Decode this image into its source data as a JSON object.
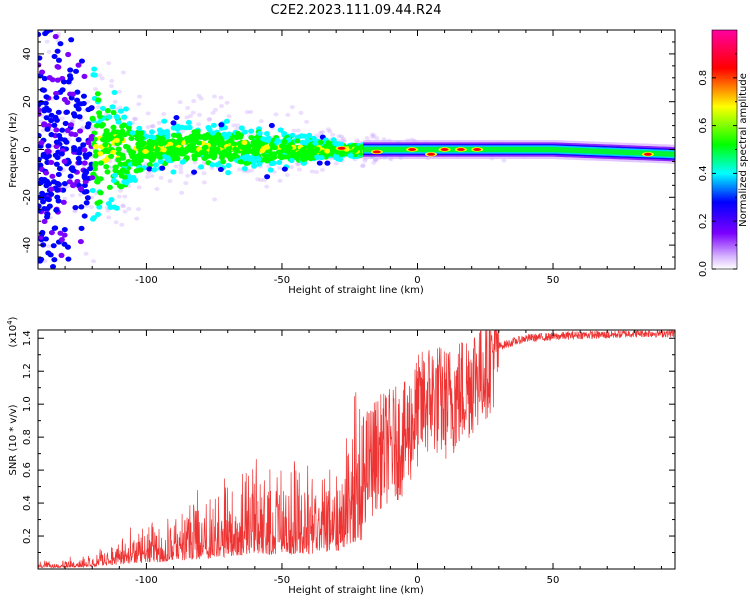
{
  "title": "C2E2.2023.111.09.44.R24",
  "chart_data": [
    {
      "type": "heatmap",
      "xlabel": "Height of straight line (km)",
      "ylabel": "Frequency (Hz)",
      "xlim": [
        -140,
        95
      ],
      "ylim": [
        -50,
        50
      ],
      "x_ticks": [
        -100,
        -50,
        0,
        50
      ],
      "y_ticks": [
        -40,
        -20,
        0,
        20,
        40
      ],
      "colorbar": {
        "label": "Normalized spectral amplitude",
        "range": [
          0,
          1
        ],
        "ticks": [
          "0.0",
          "0.2",
          "0.4",
          "0.6",
          "0.8"
        ],
        "colormap": [
          "#ffffff",
          "#7b00ff",
          "#0000ff",
          "#00ffff",
          "#00ff00",
          "#ffff00",
          "#ff0000",
          "#ff00a0"
        ]
      },
      "description_points": [
        {
          "x": -130,
          "spread": 45,
          "center": 0
        },
        {
          "x": -100,
          "spread": 8,
          "center": 0
        },
        {
          "x": -80,
          "spread": 9,
          "center": 2
        },
        {
          "x": -50,
          "spread": 7,
          "center": 0
        },
        {
          "x": -25,
          "spread": 3,
          "center": 0
        },
        {
          "x": 0,
          "spread": 1.5,
          "center": 0
        },
        {
          "x": 50,
          "spread": 1.2,
          "center": 0
        },
        {
          "x": 95,
          "spread": 1.2,
          "center": -2
        }
      ]
    },
    {
      "type": "line",
      "xlabel": "Height of straight line (km)",
      "ylabel": "SNR (10 * v/v)",
      "y_multiplier": "(x10",
      "y_multiplier_exp": "4",
      "xlim": [
        -140,
        95
      ],
      "ylim": [
        0,
        14500
      ],
      "x_ticks": [
        -100,
        -50,
        0,
        50
      ],
      "y_ticks": [
        2000,
        4000,
        6000,
        8000,
        10000,
        12000,
        14000
      ],
      "y_tick_labels": [
        "0.2",
        "0.4",
        "0.6",
        "0.8",
        "1.0",
        "1.2",
        "1.4"
      ],
      "color": "#ee3333",
      "series": [
        {
          "x": [
            -140,
            -130,
            -120,
            -115,
            -110,
            -100,
            -90,
            -80,
            -70,
            -60,
            -50,
            -40,
            -30,
            -25,
            -20,
            -15,
            -10,
            -5,
            0,
            5,
            10,
            15,
            20,
            25,
            30,
            40,
            50,
            60,
            70,
            80,
            90,
            95
          ],
          "y": [
            200,
            300,
            400,
            700,
            900,
            1200,
            1600,
            2000,
            2500,
            3000,
            2800,
            3000,
            3500,
            5000,
            6000,
            7000,
            7500,
            7800,
            9500,
            10500,
            10000,
            10500,
            11500,
            12500,
            13500,
            14000,
            14100,
            14200,
            14200,
            14300,
            14300,
            14300
          ]
        }
      ]
    }
  ]
}
